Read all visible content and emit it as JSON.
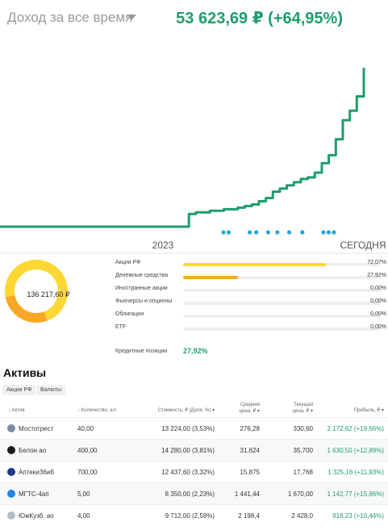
{
  "header": {
    "selector_label": "Доход за все время",
    "total_value": "53 623,69 ₽ (+64,95%)"
  },
  "colors": {
    "accent": "#1f9d6b",
    "donut_major": "#fdd835",
    "donut_minor": "#f9a825",
    "dot": "#29a3d6"
  },
  "chart_data": {
    "type": "line",
    "x_labels": [
      "2023",
      "СЕГОДНЯ"
    ],
    "series": [
      {
        "values": [
          0,
          0,
          0,
          0,
          0,
          0,
          0,
          0,
          0,
          0,
          0,
          0,
          0,
          0,
          0,
          0,
          0,
          0,
          0,
          0,
          0,
          0,
          0,
          0,
          0,
          0,
          0,
          8,
          9,
          9,
          10,
          10,
          11,
          11,
          12,
          13,
          14,
          16,
          18,
          22,
          24,
          26,
          28,
          30,
          31,
          34,
          40,
          45,
          55,
          67,
          73,
          82,
          100
        ]
      }
    ],
    "event_markers": [
      0.0,
      0.04,
      0.2,
      0.25,
      0.34,
      0.41,
      0.5,
      0.6,
      0.76,
      0.8,
      0.84
    ]
  },
  "portfolio": {
    "total": "136 217,60 ₽",
    "categories": [
      {
        "label": "Акции РФ",
        "value": "72,07%",
        "fraction": 0.7207,
        "color": "#fdd835"
      },
      {
        "label": "Денежные средства",
        "value": "27,92%",
        "fraction": 0.2792,
        "color": "#f9a825"
      },
      {
        "label": "Иностранные акции",
        "value": "0,00%",
        "fraction": 0,
        "color": "#fdd835"
      },
      {
        "label": "Фьючерсы и опционы",
        "value": "0,00%",
        "fraction": 0,
        "color": "#fdd835"
      },
      {
        "label": "Облигации",
        "value": "0,00%",
        "fraction": 0,
        "color": "#fdd835"
      },
      {
        "label": "ETF",
        "value": "0,00%",
        "fraction": 0,
        "color": "#fdd835"
      }
    ],
    "credit_label": "Кредитные позиции",
    "credit_value": "27,92%"
  },
  "actives": {
    "title": "Активы",
    "filters": [
      "Акции РФ",
      "Валюты"
    ],
    "columns": {
      "asset": "Актив",
      "qty": "Количество, шт.",
      "cost": "Стоимость, ₽ (Доля, %)",
      "avg1": "Средняя",
      "avg2": "цена, ₽",
      "cur1": "Текущая",
      "cur2": "цена, ₽",
      "profit": "Прибыль, ₽"
    },
    "rows": [
      {
        "name": "Мостотрест",
        "qty": "40,00",
        "cost": "13 224,00 (3,53%)",
        "avg": "276,28",
        "cur": "330,60",
        "profit": "2 172,62 (+19,66%)",
        "icon": "#7d8ca3"
      },
      {
        "name": "Белон ао",
        "qty": "400,00",
        "cost": "14 280,00 (3,81%)",
        "avg": "31,624",
        "cur": "35,700",
        "profit": "1 630,50 (+12,89%)",
        "icon": "#1b1b1b"
      },
      {
        "name": "АптекиЗ6иб",
        "qty": "700,00",
        "cost": "12 437,60 (3,32%)",
        "avg": "15,875",
        "cur": "17,768",
        "profit": "1 325,16 (+11,93%)",
        "icon": "#1a3a8a"
      },
      {
        "name": "МГТС-4ап",
        "qty": "5,00",
        "cost": "8 350,00 (2,23%)",
        "avg": "1 441,44",
        "cur": "1 670,00",
        "profit": "1 142,77 (+15,86%)",
        "icon": "#1e88e5"
      },
      {
        "name": "ЮжКузб. ао",
        "qty": "4,00",
        "cost": "9 712,00 (2,59%)",
        "avg": "2 198,4",
        "cur": "2 428,0",
        "profit": "918,23 (+10,44%)",
        "icon": "#b0bec5"
      }
    ]
  }
}
